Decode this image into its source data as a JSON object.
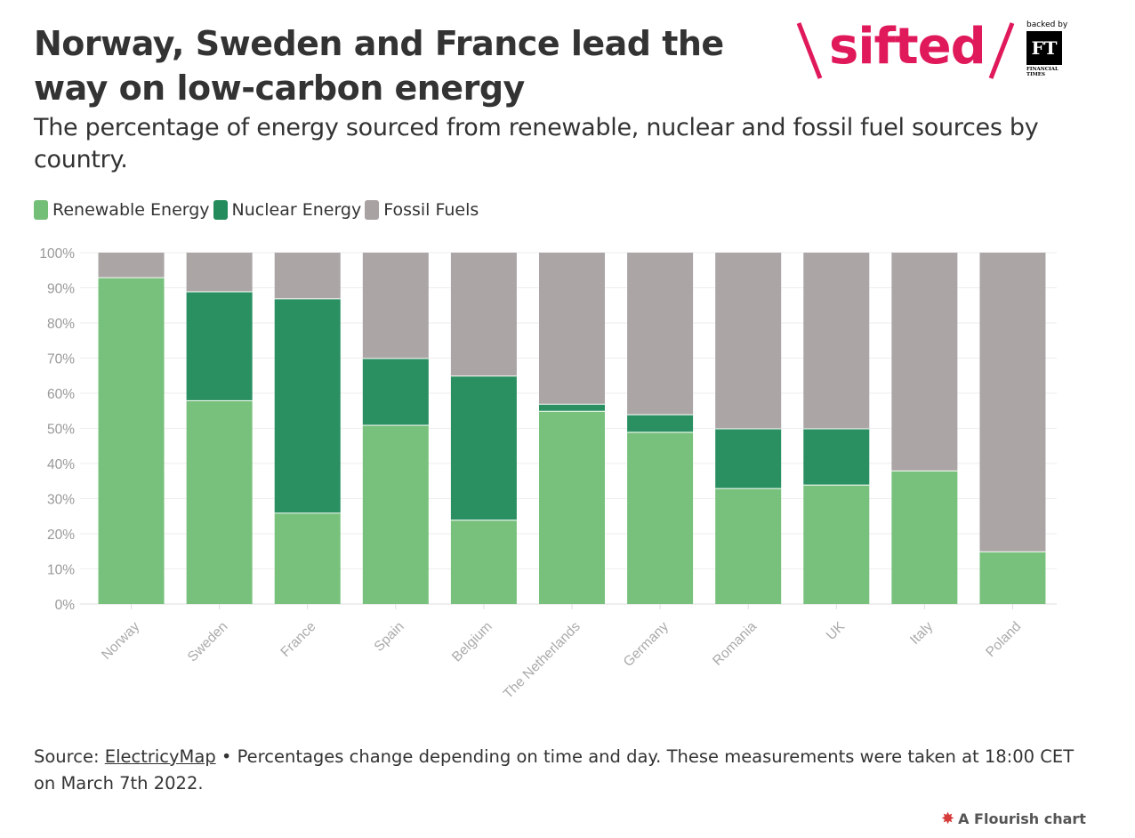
{
  "header": {
    "title": "Norway, Sweden and France lead the way on low-carbon energy",
    "subtitle": "The percentage of energy sourced from renewable, nuclear and fossil fuel sources by country."
  },
  "branding": {
    "logo_text": "sifted",
    "backed_by": "backed by",
    "ft_mark": "FT",
    "ft_caption": "FINANCIAL TIMES",
    "accent_color": "#e0195a"
  },
  "chart_data": {
    "type": "bar",
    "stacked": true,
    "categories": [
      "Norway",
      "Sweden",
      "France",
      "Spain",
      "Belgium",
      "The Netherlands",
      "Germany",
      "Romania",
      "UK",
      "Italy",
      "Poland"
    ],
    "series": [
      {
        "name": "Renewable Energy",
        "color": "#74bf78",
        "values": [
          93,
          58,
          26,
          51,
          24,
          55,
          49,
          33,
          34,
          38,
          15
        ]
      },
      {
        "name": "Nuclear Energy",
        "color": "#238b5c",
        "values": [
          0,
          31,
          61,
          19,
          41,
          2,
          5,
          17,
          16,
          0,
          0
        ]
      },
      {
        "name": "Fossil Fuels",
        "color": "#a8a2a2",
        "values": [
          7,
          11,
          13,
          30,
          35,
          43,
          46,
          50,
          50,
          62,
          85
        ]
      }
    ],
    "ylim": [
      0,
      100
    ],
    "yticks": [
      "0%",
      "10%",
      "20%",
      "30%",
      "40%",
      "50%",
      "60%",
      "70%",
      "80%",
      "90%",
      "100%"
    ],
    "grid": true,
    "legend_position": "top-left"
  },
  "footer": {
    "source_prefix": "Source: ",
    "source_link": "ElectricyMap",
    "note": " • Percentages change depending on time and day. These measurements were taken at 18:00 CET on March 7th 2022.",
    "attribution": "A Flourish chart"
  }
}
